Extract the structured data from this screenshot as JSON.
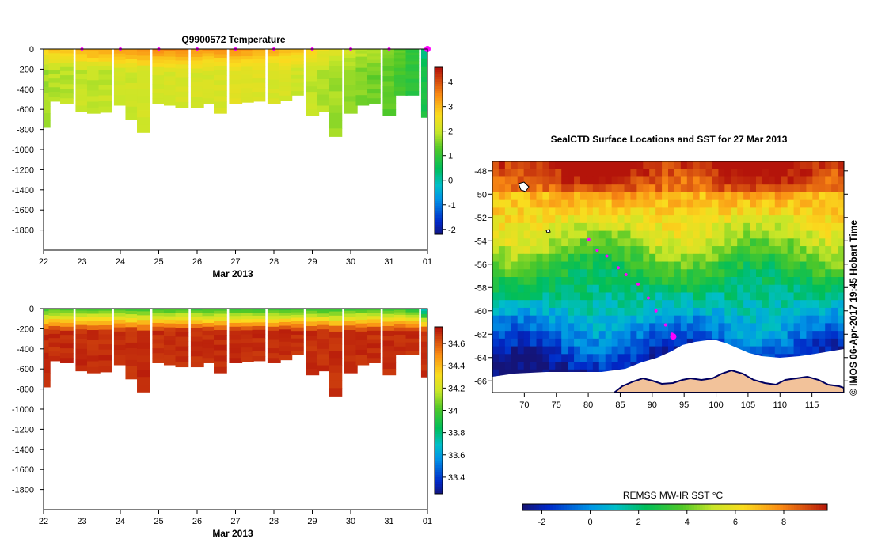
{
  "chart_data": [
    {
      "id": "temperature",
      "type": "heatmap",
      "title": "Q9900572  Temperature",
      "xlabel": "Mar 2013",
      "ylabel": "",
      "x_ticks": [
        "22",
        "23",
        "24",
        "25",
        "26",
        "27",
        "28",
        "29",
        "30",
        "31",
        "01"
      ],
      "y_ticks": [
        "0",
        "-200",
        "-400",
        "-600",
        "-800",
        "-1000",
        "-1200",
        "-1400",
        "-1600",
        "-1800"
      ],
      "xlim": [
        22,
        32
      ],
      "ylim": [
        -2000,
        0
      ],
      "profile_days": [
        22.0,
        22.3,
        22.6,
        23.0,
        23.3,
        23.6,
        24.0,
        24.3,
        24.6,
        25.0,
        25.3,
        25.6,
        26.0,
        26.3,
        26.6,
        27.0,
        27.3,
        27.6,
        28.0,
        28.3,
        28.6,
        29.0,
        29.3,
        29.6,
        30.0,
        30.3,
        30.6,
        31.0,
        31.3,
        31.6,
        32.0
      ],
      "profile_depths": [
        780,
        520,
        540,
        620,
        640,
        630,
        560,
        700,
        830,
        540,
        560,
        580,
        580,
        540,
        640,
        540,
        530,
        520,
        540,
        510,
        460,
        660,
        620,
        870,
        640,
        560,
        540,
        660,
        460,
        460,
        680
      ],
      "surface_values": [
        3.0,
        3.0,
        3.1,
        3.2,
        3.3,
        3.3,
        3.4,
        3.5,
        3.6,
        3.7,
        3.6,
        3.6,
        3.5,
        3.5,
        3.5,
        3.6,
        3.4,
        3.3,
        3.2,
        3.1,
        3.0,
        2.8,
        2.6,
        2.4,
        2.2,
        2.0,
        1.9,
        1.8,
        1.4,
        1.0,
        0.2
      ],
      "deep_values": [
        1.8,
        1.9,
        1.9,
        2.0,
        2.0,
        2.0,
        2.1,
        2.1,
        2.1,
        2.2,
        2.2,
        2.2,
        2.2,
        2.2,
        2.2,
        2.3,
        2.3,
        2.3,
        2.2,
        2.2,
        2.1,
        2.0,
        1.9,
        1.8,
        1.7,
        1.6,
        1.5,
        1.4,
        1.2,
        1.0,
        0.8
      ],
      "marker_days": [
        23,
        24,
        25,
        26,
        27,
        28,
        29,
        30,
        31,
        32
      ],
      "colorbar": {
        "min": -2.2,
        "max": 4.6,
        "ticks": [
          "4",
          "3",
          "2",
          "1",
          "0",
          "-1",
          "-2"
        ],
        "tick_values": [
          4,
          3,
          2,
          1,
          0,
          -1,
          -2
        ]
      }
    },
    {
      "id": "salinity",
      "type": "heatmap",
      "title": "",
      "xlabel": "Mar 2013",
      "x_ticks": [
        "22",
        "23",
        "24",
        "25",
        "26",
        "27",
        "28",
        "29",
        "30",
        "31",
        "01"
      ],
      "y_ticks": [
        "0",
        "-200",
        "-400",
        "-600",
        "-800",
        "-1000",
        "-1200",
        "-1400",
        "-1600",
        "-1800"
      ],
      "xlim": [
        22,
        32
      ],
      "ylim": [
        -2000,
        0
      ],
      "surface_values": [
        33.95,
        33.95,
        33.95,
        33.94,
        33.94,
        33.94,
        33.93,
        33.93,
        33.93,
        33.92,
        33.92,
        33.92,
        33.91,
        33.91,
        33.91,
        33.9,
        33.9,
        33.9,
        33.9,
        33.9,
        33.9,
        33.91,
        33.91,
        33.92,
        33.92,
        33.93,
        33.93,
        33.94,
        33.92,
        33.85,
        33.6
      ],
      "deep_values": [
        34.7,
        34.7,
        34.7,
        34.7,
        34.7,
        34.7,
        34.7,
        34.7,
        34.7,
        34.7,
        34.7,
        34.7,
        34.7,
        34.7,
        34.7,
        34.7,
        34.7,
        34.7,
        34.7,
        34.7,
        34.7,
        34.7,
        34.7,
        34.7,
        34.7,
        34.7,
        34.7,
        34.7,
        34.7,
        34.7,
        34.7
      ],
      "colorbar": {
        "min": 33.25,
        "max": 34.75,
        "ticks": [
          "34.6",
          "34.4",
          "34.2",
          "34",
          "33.8",
          "33.6",
          "33.4"
        ],
        "tick_values": [
          34.6,
          34.4,
          34.2,
          34.0,
          33.8,
          33.6,
          33.4
        ]
      }
    },
    {
      "id": "sst_map",
      "type": "heatmap",
      "title": "SealCTD Surface Locations and SST for 27 Mar 2013",
      "x_ticks": [
        "70",
        "75",
        "80",
        "85",
        "90",
        "95",
        "100",
        "105",
        "110",
        "115"
      ],
      "x_tick_values": [
        70,
        75,
        80,
        85,
        90,
        95,
        100,
        105,
        110,
        115
      ],
      "y_ticks": [
        "-48",
        "-50",
        "-52",
        "-54",
        "-56",
        "-58",
        "-60",
        "-62",
        "-64",
        "-66"
      ],
      "y_tick_values": [
        -48,
        -50,
        -52,
        -54,
        -56,
        -58,
        -60,
        -62,
        -64,
        -66
      ],
      "xlim": [
        65,
        120
      ],
      "ylim": [
        -67,
        -47.2
      ],
      "track": [
        [
          80.1,
          -53.9
        ],
        [
          81.4,
          -54.8
        ],
        [
          82.9,
          -55.3
        ],
        [
          84.7,
          -56.3
        ],
        [
          85.9,
          -56.9
        ],
        [
          87.8,
          -57.7
        ],
        [
          89.4,
          -58.9
        ],
        [
          90.6,
          -60.0
        ],
        [
          92.1,
          -61.2
        ],
        [
          93.1,
          -62.0
        ]
      ],
      "track_current": [
        93.3,
        -62.2
      ],
      "colorbar": {
        "label": "REMSS MW-IR SST °C",
        "min": -2.8,
        "max": 9.8,
        "ticks": [
          "-2",
          "0",
          "2",
          "4",
          "6",
          "8"
        ],
        "tick_values": [
          -2,
          0,
          2,
          4,
          6,
          8
        ]
      },
      "credit": "© IMOS 06-Apr-2017 19:45 Hobart Time"
    }
  ],
  "colors": {
    "profile_marker": "#ff00ff",
    "land": "#f2c29a",
    "coast": "#000060",
    "ice": "#ffffff"
  }
}
